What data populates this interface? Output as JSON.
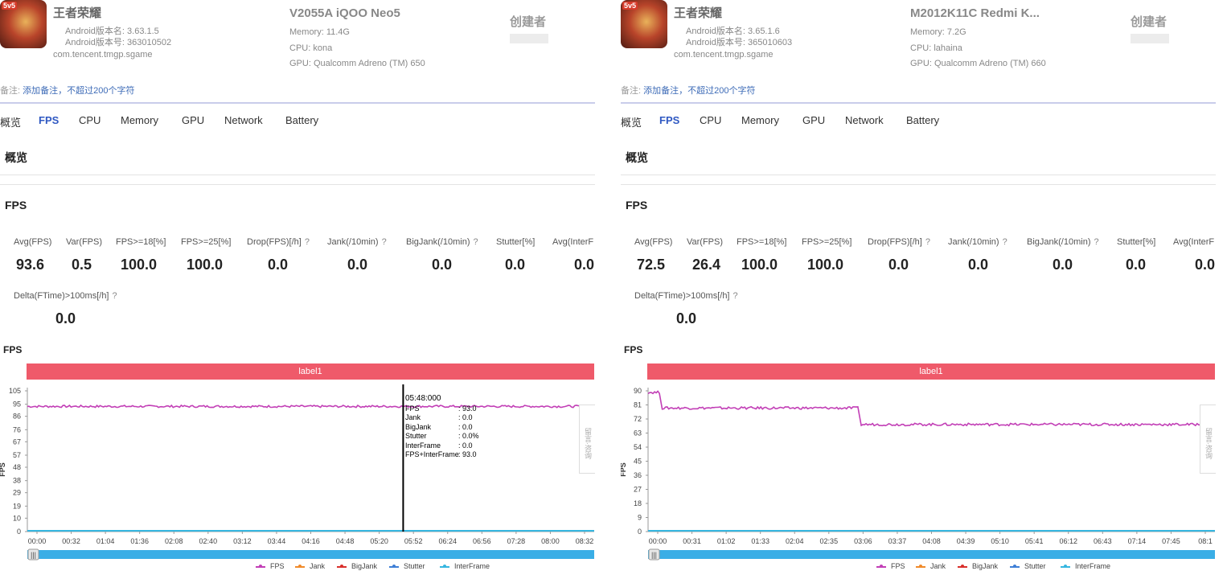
{
  "panels": [
    {
      "app": {
        "name": "王者荣耀",
        "badge": "5v5",
        "version_name": "Android版本名: 3.63.1.5",
        "version_code": "Android版本号: 363010502",
        "package": "com.tencent.tmgp.sgame"
      },
      "device": {
        "name": "V2055A iQOO Neo5",
        "memory": "Memory: 11.4G",
        "cpu": "CPU: kona",
        "gpu": "GPU: Qualcomm Adreno (TM) 650"
      },
      "creator_label": "创建者",
      "note_prefix": "备注:",
      "note_link": "添加备注，不超过200个字符",
      "tabs": [
        "概览",
        "FPS",
        "CPU",
        "Memory",
        "GPU",
        "Network",
        "Battery"
      ],
      "active_tab": "FPS",
      "overview_title": "概览",
      "fps_title": "FPS",
      "metrics": [
        {
          "label": "Avg(FPS)",
          "value": "93.6",
          "help": false
        },
        {
          "label": "Var(FPS)",
          "value": "0.5",
          "help": false
        },
        {
          "label": "FPS>=18[%]",
          "value": "100.0",
          "help": false
        },
        {
          "label": "FPS>=25[%]",
          "value": "100.0",
          "help": false
        },
        {
          "label": "Drop(FPS)[/h]",
          "value": "0.0",
          "help": true
        },
        {
          "label": "Jank(/10min)",
          "value": "0.0",
          "help": true
        },
        {
          "label": "BigJank(/10min)",
          "value": "0.0",
          "help": true
        },
        {
          "label": "Stutter[%]",
          "value": "0.0",
          "help": false
        },
        {
          "label": "Avg(InterF",
          "value": "0.0",
          "help": false
        }
      ],
      "metric_extra": {
        "label": "Delta(FTime)>100ms[/h]",
        "value": "0.0",
        "help": true
      },
      "chart_title": "FPS",
      "side_tab": "留言·咨询",
      "tooltip": {
        "time": "05:48:000",
        "rows": [
          {
            "k": "FPS",
            "v": ": 93.0"
          },
          {
            "k": "Jank",
            "v": ": 0.0"
          },
          {
            "k": "BigJank",
            "v": ": 0.0"
          },
          {
            "k": "Stutter",
            "v": ": 0.0%"
          },
          {
            "k": "InterFrame",
            "v": ": 0.0"
          },
          {
            "k": "FPS+InterFrame",
            "v": ": 93.0"
          }
        ]
      }
    },
    {
      "app": {
        "name": "王者荣耀",
        "badge": "5v5",
        "version_name": "Android版本名: 3.65.1.6",
        "version_code": "Android版本号: 365010603",
        "package": "com.tencent.tmgp.sgame"
      },
      "device": {
        "name": "M2012K11C Redmi K...",
        "memory": "Memory: 7.2G",
        "cpu": "CPU: lahaina",
        "gpu": "GPU: Qualcomm Adreno (TM) 660"
      },
      "creator_label": "创建者",
      "note_prefix": "备注:",
      "note_link": "添加备注，不超过200个字符",
      "tabs": [
        "概览",
        "FPS",
        "CPU",
        "Memory",
        "GPU",
        "Network",
        "Battery"
      ],
      "active_tab": "FPS",
      "overview_title": "概览",
      "fps_title": "FPS",
      "metrics": [
        {
          "label": "Avg(FPS)",
          "value": "72.5",
          "help": false
        },
        {
          "label": "Var(FPS)",
          "value": "26.4",
          "help": false
        },
        {
          "label": "FPS>=18[%]",
          "value": "100.0",
          "help": false
        },
        {
          "label": "FPS>=25[%]",
          "value": "100.0",
          "help": false
        },
        {
          "label": "Drop(FPS)[/h]",
          "value": "0.0",
          "help": true
        },
        {
          "label": "Jank(/10min)",
          "value": "0.0",
          "help": true
        },
        {
          "label": "BigJank(/10min)",
          "value": "0.0",
          "help": true
        },
        {
          "label": "Stutter[%]",
          "value": "0.0",
          "help": false
        },
        {
          "label": "Avg(InterF",
          "value": "0.0",
          "help": false
        }
      ],
      "metric_extra": {
        "label": "Delta(FTime)>100ms[/h]",
        "value": "0.0",
        "help": true
      },
      "chart_title": "FPS",
      "side_tab": "留言·咨询",
      "tooltip": null
    }
  ],
  "legend": [
    {
      "name": "FPS",
      "color": "#c23fb6"
    },
    {
      "name": "Jank",
      "color": "#f08a2a"
    },
    {
      "name": "BigJank",
      "color": "#d9302c"
    },
    {
      "name": "Stutter",
      "color": "#3f7fd6"
    },
    {
      "name": "InterFrame",
      "color": "#36b6e0"
    }
  ],
  "chart_data": [
    {
      "type": "line",
      "title": "FPS",
      "band_label": "label1",
      "ylabel": "FPS",
      "ylim": [
        0,
        105
      ],
      "yticks": [
        0,
        10,
        19,
        29,
        38,
        48,
        57,
        67,
        76,
        86,
        95,
        105
      ],
      "xticks": [
        "00:00",
        "00:32",
        "01:04",
        "01:36",
        "02:08",
        "02:40",
        "03:12",
        "03:44",
        "04:16",
        "04:48",
        "05:20",
        "05:52",
        "06:24",
        "06:56",
        "07:28",
        "08:00",
        "08:32"
      ],
      "series": [
        {
          "name": "FPS",
          "segments": [
            {
              "from": 0,
              "to": 1,
              "value": 93.4
            }
          ]
        },
        {
          "name": "InterFrame",
          "segments": [
            {
              "from": 0,
              "to": 1,
              "value": 0
            }
          ]
        }
      ],
      "cursor_fraction": 0.663
    },
    {
      "type": "line",
      "title": "FPS",
      "band_label": "label1",
      "ylabel": "FPS",
      "ylim": [
        0,
        90
      ],
      "yticks": [
        0,
        9,
        18,
        27,
        36,
        45,
        54,
        63,
        72,
        81,
        90
      ],
      "xticks": [
        "00:00",
        "00:31",
        "01:02",
        "01:33",
        "02:04",
        "02:35",
        "03:06",
        "03:37",
        "04:08",
        "04:39",
        "05:10",
        "05:41",
        "06:12",
        "06:43",
        "07:14",
        "07:45",
        "08:1"
      ],
      "series": [
        {
          "name": "FPS",
          "segments": [
            {
              "from": 0,
              "to": 0.02,
              "value": 89
            },
            {
              "from": 0.025,
              "to": 0.37,
              "value": 79
            },
            {
              "from": 0.376,
              "to": 1,
              "value": 68.5
            }
          ]
        },
        {
          "name": "InterFrame",
          "segments": [
            {
              "from": 0,
              "to": 1,
              "value": 0
            }
          ]
        }
      ],
      "cursor_fraction": null
    }
  ]
}
